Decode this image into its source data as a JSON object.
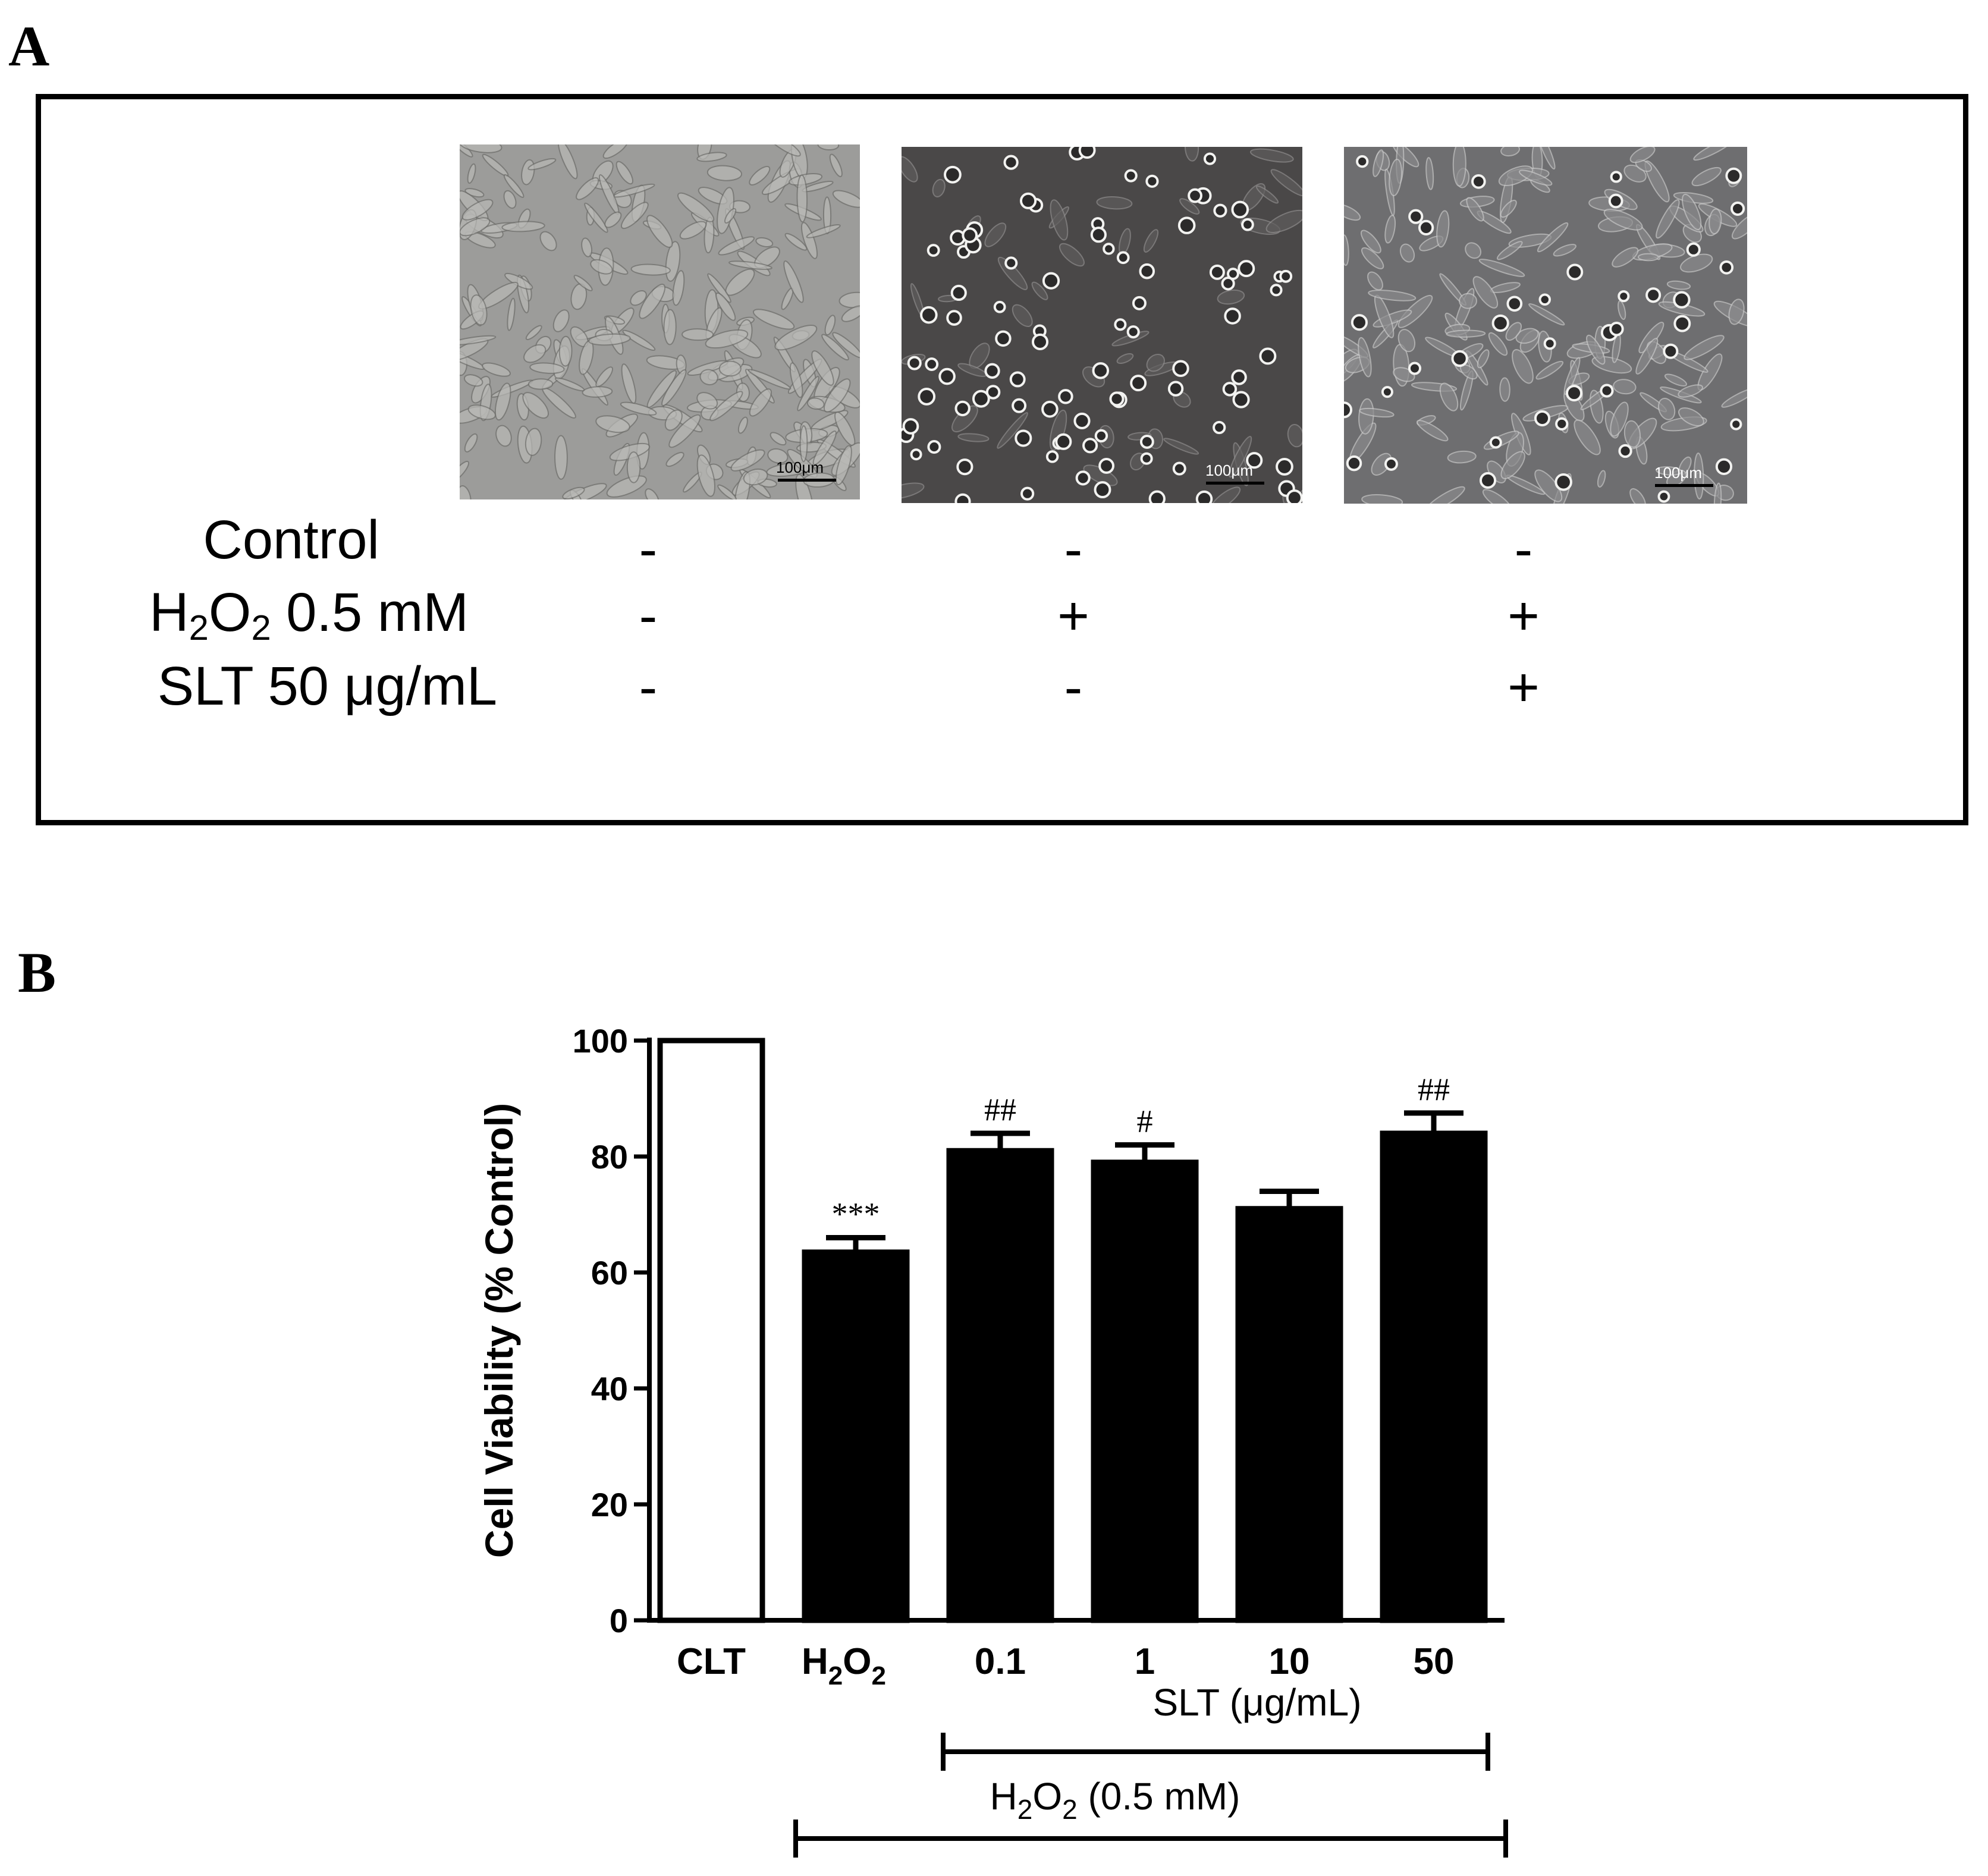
{
  "panel_a": {
    "letter": "A",
    "images": [
      {
        "scale_label": "100μm",
        "appearance": "confluent spindle-shaped cells"
      },
      {
        "scale_label": "100μm",
        "appearance": "rounded detached cells"
      },
      {
        "scale_label": "100μm",
        "appearance": "mostly spread cells with some rounded cells"
      }
    ],
    "rows": [
      {
        "label_pre": "Control",
        "label_sub1": "",
        "label_mid": "",
        "label_sub2": "",
        "label_post": "",
        "signs": [
          "-",
          "-",
          "-"
        ]
      },
      {
        "label_pre": "H",
        "label_sub1": "2",
        "label_mid": "O",
        "label_sub2": "2",
        "label_post": " 0.5 mM",
        "signs": [
          "-",
          "+",
          "+"
        ]
      },
      {
        "label_pre": "SLT 50 μg/mL",
        "label_sub1": "",
        "label_mid": "",
        "label_sub2": "",
        "label_post": "",
        "signs": [
          "-",
          "-",
          "+"
        ]
      }
    ]
  },
  "panel_b": {
    "letter": "B"
  },
  "chart_data": {
    "type": "bar",
    "categories": [
      "CLT",
      "H2O2",
      "0.1",
      "1",
      "10",
      "50"
    ],
    "category_labels": [
      {
        "pre": "CLT",
        "sub1": "",
        "mid": "",
        "sub2": ""
      },
      {
        "pre": "H",
        "sub1": "2",
        "mid": "O",
        "sub2": "2"
      },
      {
        "pre": "0.1",
        "sub1": "",
        "mid": "",
        "sub2": ""
      },
      {
        "pre": "1",
        "sub1": "",
        "mid": "",
        "sub2": ""
      },
      {
        "pre": "10",
        "sub1": "",
        "mid": "",
        "sub2": ""
      },
      {
        "pre": "50",
        "sub1": "",
        "mid": "",
        "sub2": ""
      }
    ],
    "values": [
      100,
      63.5,
      81,
      79,
      71,
      84
    ],
    "errors": [
      0,
      2.5,
      3,
      3,
      3,
      3.5
    ],
    "significance": [
      "",
      "***",
      "##",
      "#",
      "",
      "##"
    ],
    "fills": [
      "#ffffff",
      "#000000",
      "#000000",
      "#000000",
      "#000000",
      "#000000"
    ],
    "ylabel": "Cell Viability (% Control)",
    "ylim": [
      0,
      100
    ],
    "yticks": [
      0,
      20,
      40,
      60,
      80,
      100
    ],
    "xlabel": "",
    "grid": false,
    "brackets": [
      {
        "label_pre": "SLT (μg/mL)",
        "label_sub1": "",
        "label_mid": "",
        "label_sub2": "",
        "label_post": "",
        "from_category": 2,
        "to_category": 5
      },
      {
        "label_pre": "H",
        "label_sub1": "2",
        "label_mid": "O",
        "label_sub2": "2",
        "label_post": " (0.5 mM)",
        "from_category": 1,
        "to_category": 5
      }
    ]
  }
}
